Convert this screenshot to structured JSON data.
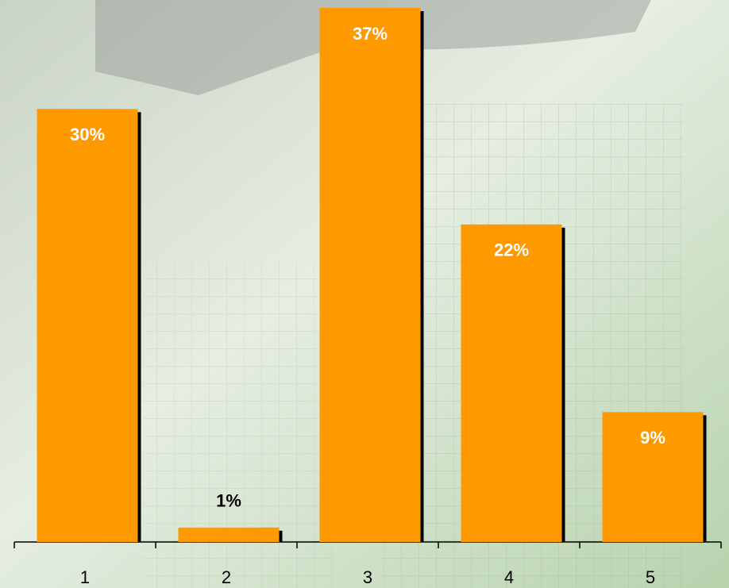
{
  "chart_data": {
    "type": "bar",
    "categories": [
      "1",
      "2",
      "3",
      "4",
      "5"
    ],
    "values": [
      30,
      1,
      37,
      22,
      9
    ],
    "value_labels": [
      "30%",
      "1%",
      "37%",
      "22%",
      "9%"
    ],
    "color": "#ff9900"
  }
}
